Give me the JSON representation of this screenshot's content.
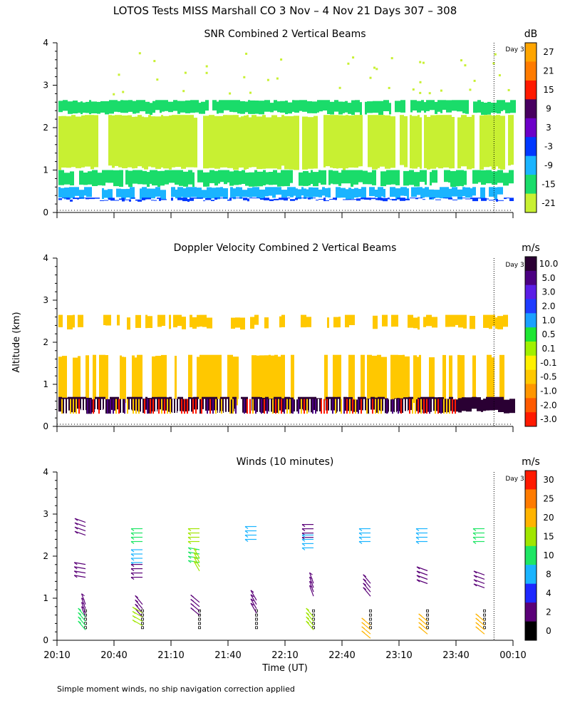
{
  "page": {
    "title": "LOTOS Tests MISS Marshall CO   3 Nov –  4 Nov 21 Days 307 – 308",
    "y_axis_label": "Altitude (km)",
    "x_axis_label": "Time (UT)",
    "footnote": "Simple moment winds, no ship navigation correction applied",
    "day_marker_label": "Day 3"
  },
  "chart_data": [
    {
      "type": "heatmap",
      "title": "SNR Combined 2 Vertical Beams",
      "unit": "dB",
      "ylim": [
        0,
        4
      ],
      "y_ticks": [
        "0",
        "1",
        "2",
        "3",
        "4"
      ],
      "x_ticks": [
        "20:10",
        "20:40",
        "21:10",
        "21:40",
        "22:10",
        "22:40",
        "23:10",
        "23:40",
        "00:10"
      ],
      "xlim_minutes": [
        0,
        240
      ],
      "day_boundary_minutes": 230,
      "colorbar_labels": [
        "27",
        "21",
        "15",
        "9",
        "3",
        "-3",
        "-9",
        "-15",
        "-21"
      ],
      "colorbar_colors": [
        "#ffa500",
        "#ff7b00",
        "#ff1a00",
        "#480060",
        "#6c00c8",
        "#0038ff",
        "#1ab4ff",
        "#1adc6a",
        "#c8f032"
      ],
      "data_bands": [
        {
          "alt_range": [
            2.3,
            2.65
          ],
          "level": "-15"
        },
        {
          "alt_range": [
            1.0,
            2.3
          ],
          "level": "-21"
        },
        {
          "alt_range": [
            0.6,
            1.0
          ],
          "level": "-15"
        },
        {
          "alt_range": [
            0.3,
            0.6
          ],
          "level": "-9"
        },
        {
          "alt_range": [
            0.25,
            0.35
          ],
          "level": "-3"
        }
      ]
    },
    {
      "type": "heatmap",
      "title": "Doppler Velocity Combined 2 Vertical Beams",
      "unit": "m/s",
      "ylim": [
        0,
        4
      ],
      "y_ticks": [
        "0",
        "1",
        "2",
        "3",
        "4"
      ],
      "colorbar_labels": [
        "10.0",
        "5.0",
        "3.0",
        "2.0",
        "1.0",
        "0.5",
        "0.1",
        "-0.1",
        "-0.5",
        "-1.0",
        "-2.0",
        "-3.0"
      ],
      "colorbar_colors": [
        "#2a0033",
        "#4b0082",
        "#5a1ee6",
        "#1e3cff",
        "#1aa0ff",
        "#1ee632",
        "#a0f000",
        "#fff000",
        "#ffc800",
        "#ff9600",
        "#ff5a00",
        "#ff1a00"
      ],
      "data_bands": [
        {
          "alt_range": [
            2.3,
            2.65
          ],
          "level": "-0.5"
        },
        {
          "alt_range": [
            0.5,
            1.7
          ],
          "level": "-0.5"
        },
        {
          "alt_range": [
            0.3,
            0.7
          ],
          "level": "10.0"
        }
      ]
    },
    {
      "type": "scatter",
      "title": "Winds (10 minutes)",
      "unit": "m/s",
      "ylim": [
        0,
        4
      ],
      "y_ticks": [
        "0",
        "1",
        "2",
        "3",
        "4"
      ],
      "colorbar_labels": [
        "30",
        "25",
        "20",
        "15",
        "10",
        "8",
        "4",
        "2",
        "0"
      ],
      "colorbar_colors": [
        "#ff1a00",
        "#ff7b00",
        "#ffb400",
        "#a0e600",
        "#1ee664",
        "#1ab4ff",
        "#1e28ff",
        "#5a0078",
        "#000000"
      ],
      "profile_times_minutes": [
        15,
        45,
        75,
        105,
        135,
        165,
        195,
        225
      ],
      "barbs": [
        {
          "t": 15,
          "alt": 2.65,
          "spd": 3,
          "dir": 250
        },
        {
          "t": 15,
          "alt": 1.65,
          "spd": 3,
          "dir": 260
        },
        {
          "t": 15,
          "alt": 0.7,
          "spd": 3,
          "dir": 200
        },
        {
          "t": 15,
          "alt": 0.4,
          "spd": 14,
          "dir": 220
        },
        {
          "t": 45,
          "alt": 2.5,
          "spd": 13,
          "dir": 270
        },
        {
          "t": 45,
          "alt": 2.0,
          "spd": 9,
          "dir": 270
        },
        {
          "t": 45,
          "alt": 1.65,
          "spd": 3,
          "dir": 270
        },
        {
          "t": 45,
          "alt": 0.7,
          "spd": 3,
          "dir": 220
        },
        {
          "t": 45,
          "alt": 0.5,
          "spd": 16,
          "dir": 240
        },
        {
          "t": 75,
          "alt": 2.5,
          "spd": 16,
          "dir": 270
        },
        {
          "t": 75,
          "alt": 2.0,
          "spd": 10,
          "dir": 260
        },
        {
          "t": 75,
          "alt": 1.8,
          "spd": 18,
          "dir": 210
        },
        {
          "t": 75,
          "alt": 0.75,
          "spd": 3,
          "dir": 230
        },
        {
          "t": 105,
          "alt": 2.55,
          "spd": 9,
          "dir": 270
        },
        {
          "t": 105,
          "alt": 0.8,
          "spd": 3,
          "dir": 210
        },
        {
          "t": 135,
          "alt": 2.6,
          "spd": 3,
          "dir": 270
        },
        {
          "t": 135,
          "alt": 2.35,
          "spd": 9,
          "dir": 270
        },
        {
          "t": 135,
          "alt": 1.2,
          "spd": 3,
          "dir": 200
        },
        {
          "t": 135,
          "alt": 0.4,
          "spd": 16,
          "dir": 220
        },
        {
          "t": 165,
          "alt": 2.5,
          "spd": 9,
          "dir": 270
        },
        {
          "t": 165,
          "alt": 1.2,
          "spd": 3,
          "dir": 220
        },
        {
          "t": 165,
          "alt": 0.2,
          "spd": 22,
          "dir": 230
        },
        {
          "t": 195,
          "alt": 2.5,
          "spd": 9,
          "dir": 270
        },
        {
          "t": 195,
          "alt": 1.5,
          "spd": 3,
          "dir": 250
        },
        {
          "t": 195,
          "alt": 0.3,
          "spd": 20,
          "dir": 230
        },
        {
          "t": 225,
          "alt": 2.5,
          "spd": 10,
          "dir": 270
        },
        {
          "t": 225,
          "alt": 1.4,
          "spd": 3,
          "dir": 250
        },
        {
          "t": 225,
          "alt": 0.3,
          "spd": 20,
          "dir": 230
        }
      ]
    }
  ]
}
